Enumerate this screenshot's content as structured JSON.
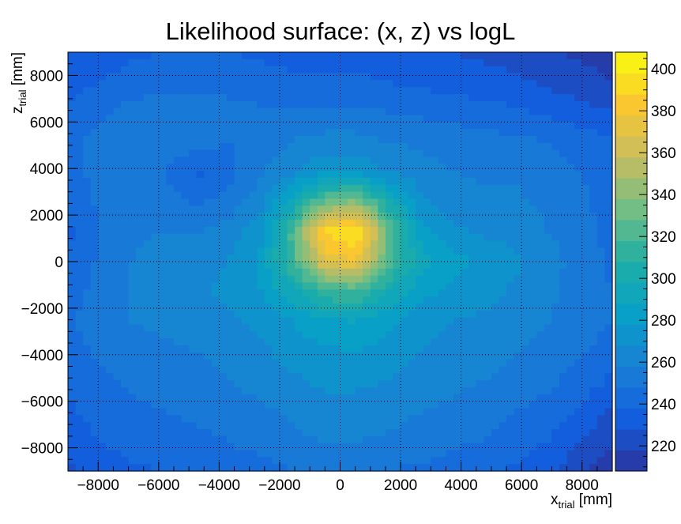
{
  "chart_data": {
    "type": "heatmap",
    "title": "Likelihood surface: (x, z) vs logL",
    "xlabel": {
      "main": "x",
      "sub": "trial",
      "unit": " [mm]"
    },
    "ylabel": {
      "main": "z",
      "sub": "trial",
      "unit": " [mm]"
    },
    "xlim": [
      -9000,
      9000
    ],
    "ylim": [
      -9000,
      9000
    ],
    "zlim": [
      208,
      408
    ],
    "x_ticks": [
      -8000,
      -6000,
      -4000,
      -2000,
      0,
      2000,
      4000,
      6000,
      8000
    ],
    "y_ticks": [
      -8000,
      -6000,
      -4000,
      -2000,
      0,
      2000,
      4000,
      6000,
      8000
    ],
    "z_ticks": [
      220,
      240,
      260,
      280,
      300,
      320,
      340,
      360,
      380,
      400
    ],
    "grid": true,
    "palette": "kBird",
    "grid_color": "#000000",
    "peak": {
      "x": 0,
      "z": 300,
      "value": 405
    },
    "cells": [
      [
        228,
        232,
        236,
        238,
        238,
        238,
        236,
        234,
        232,
        232,
        232,
        230,
        228,
        226,
        224,
        220,
        216,
        214
      ],
      [
        234,
        238,
        242,
        244,
        244,
        244,
        242,
        240,
        240,
        240,
        238,
        236,
        234,
        232,
        230,
        226,
        222,
        218
      ],
      [
        240,
        246,
        252,
        254,
        254,
        252,
        250,
        250,
        250,
        250,
        248,
        246,
        244,
        242,
        240,
        236,
        232,
        228
      ],
      [
        244,
        252,
        256,
        258,
        252,
        248,
        254,
        258,
        262,
        262,
        258,
        256,
        254,
        252,
        250,
        248,
        244,
        240
      ],
      [
        244,
        252,
        254,
        248,
        236,
        244,
        256,
        266,
        276,
        276,
        268,
        262,
        258,
        256,
        256,
        252,
        248,
        244
      ],
      [
        240,
        250,
        254,
        252,
        246,
        252,
        264,
        292,
        330,
        340,
        300,
        270,
        262,
        260,
        260,
        256,
        250,
        244
      ],
      [
        236,
        248,
        256,
        258,
        258,
        262,
        274,
        320,
        390,
        400,
        330,
        284,
        270,
        266,
        264,
        258,
        252,
        244
      ],
      [
        238,
        250,
        258,
        262,
        264,
        268,
        280,
        318,
        370,
        378,
        324,
        292,
        282,
        276,
        270,
        262,
        254,
        246
      ],
      [
        242,
        252,
        258,
        262,
        266,
        270,
        278,
        294,
        316,
        318,
        298,
        282,
        276,
        272,
        266,
        260,
        254,
        248
      ],
      [
        246,
        254,
        258,
        260,
        262,
        266,
        270,
        278,
        286,
        288,
        280,
        272,
        268,
        266,
        262,
        258,
        254,
        248
      ],
      [
        244,
        250,
        254,
        256,
        258,
        262,
        266,
        272,
        276,
        278,
        274,
        268,
        264,
        262,
        258,
        254,
        250,
        242
      ],
      [
        240,
        246,
        250,
        252,
        254,
        258,
        262,
        266,
        270,
        270,
        268,
        264,
        260,
        258,
        254,
        250,
        244,
        236
      ],
      [
        236,
        242,
        246,
        248,
        250,
        252,
        256,
        260,
        264,
        264,
        262,
        258,
        256,
        252,
        248,
        244,
        236,
        226
      ],
      [
        232,
        238,
        242,
        244,
        246,
        248,
        252,
        256,
        258,
        258,
        256,
        254,
        250,
        248,
        244,
        238,
        228,
        218
      ],
      [
        226,
        232,
        236,
        238,
        240,
        242,
        244,
        248,
        250,
        250,
        248,
        246,
        244,
        240,
        236,
        230,
        220,
        212
      ]
    ]
  }
}
